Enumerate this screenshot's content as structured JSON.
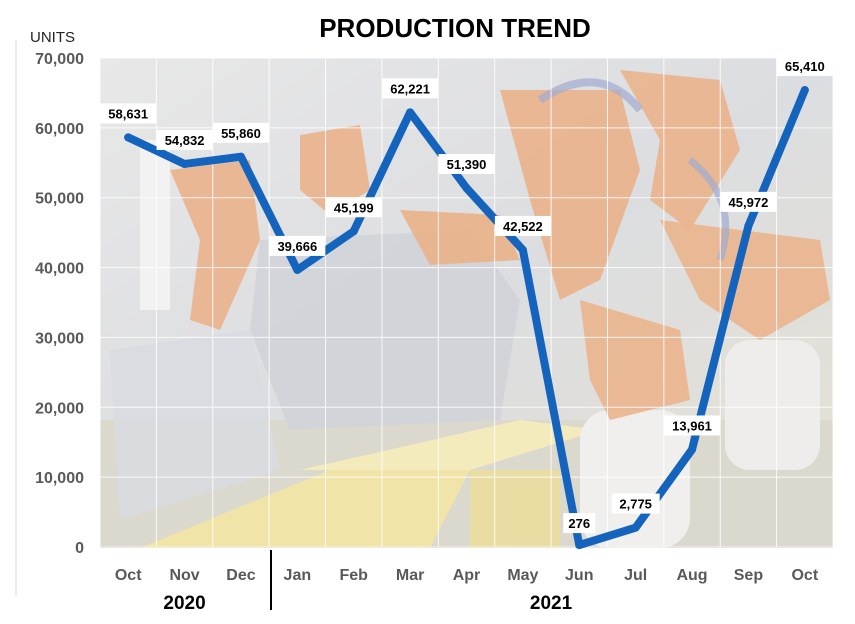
{
  "colors": {
    "line": "#1464be",
    "label_bg": "#ffffff"
  },
  "chart_data": {
    "type": "line",
    "title": "PRODUCTION TREND",
    "ylabel": "UNITS",
    "ylim": [
      0,
      70000
    ],
    "yticks": [
      "0",
      "10,000",
      "20,000",
      "30,000",
      "40,000",
      "50,000",
      "60,000",
      "70,000"
    ],
    "grid": true,
    "categories": [
      "Oct",
      "Nov",
      "Dec",
      "Jan",
      "Feb",
      "Mar",
      "Apr",
      "May",
      "Jun",
      "Jul",
      "Aug",
      "Sep",
      "Oct"
    ],
    "groups": [
      {
        "label": "2020",
        "count": 3
      },
      {
        "label": "2021",
        "count": 10
      }
    ],
    "values": [
      58631,
      54832,
      55860,
      39666,
      45199,
      62221,
      51390,
      42522,
      276,
      2775,
      13961,
      45972,
      65410
    ],
    "data_labels": [
      "58,631",
      "54,832",
      "55,860",
      "39,666",
      "45,199",
      "62,221",
      "51,390",
      "42,522",
      "276",
      "2,775",
      "13,961",
      "45,972",
      "65,410"
    ]
  }
}
